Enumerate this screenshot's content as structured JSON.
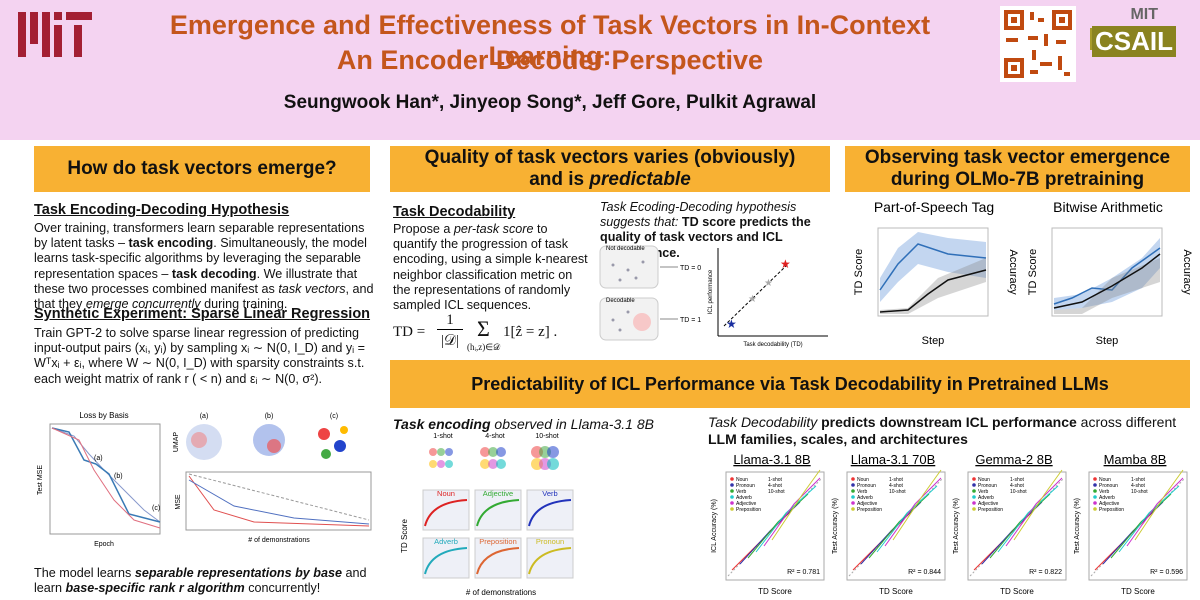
{
  "header": {
    "title": [
      "Emergence and Effectiveness of Task Vectors in In-Context Learning:",
      "An Encoder Decoder Perspective"
    ],
    "authors": "Seungwook Han*, Jinyeop Song*, Jeff Gore, Pulkit Agrawal",
    "lab_logo": [
      "MIT",
      "CSAIL"
    ]
  },
  "left": {
    "heading": "How do task vectors emerge?",
    "hypothesis": {
      "title": "Task Encoding-Decoding Hypothesis",
      "parts": [
        "Over training, transformers learn separable representations by latent tasks – ",
        "task encoding",
        ". Simultaneously, the model learns task-specific algorithms by leveraging the separable representation spaces – ",
        "task decoding",
        ". We illustrate that these two processes combined manifest as ",
        "task vectors",
        ", and that they ",
        "emerge concurrently",
        " during training."
      ]
    },
    "synthetic": {
      "title": "Synthetic Experiment: Sparse Linear Regression",
      "text": "Train GPT-2 to solve sparse linear regression of predicting input-output pairs (xᵢ, yᵢ) by sampling xᵢ ∼ N(0, I_D) and yᵢ = Wᵀxᵢ + εᵢ, where W ∼ N(0, I_D) with sparsity constraints s.t. each weight matrix of rank r ( < n) and εᵢ ∼ N(0, σ²)."
    },
    "figure": {
      "title": "Loss by Basis",
      "panels": [
        "(a)",
        "(b)",
        "(c)"
      ],
      "x_labels": [
        "Epoch",
        "# of demonstrations"
      ],
      "y_labels": [
        "Test MSE",
        "UMAP",
        "MSE"
      ]
    },
    "conclusion": [
      "The model learns ",
      "separable representations by base",
      " and learn ",
      "base-specific rank r algorithm",
      " concurrently!"
    ]
  },
  "middle": {
    "heading": [
      "Quality of task vectors varies (obviously)",
      "and is ",
      "predictable"
    ],
    "decodability": {
      "title": "Task Decodability",
      "parts": [
        "Propose a ",
        "per-task score",
        " to quantify the progression of task encoding, using a simple k-nearest neighbor classification metric on the representations of randomly sampled ICL sequences."
      ],
      "formula": [
        "TD =",
        "1",
        "|𝒟|",
        "Σ",
        "(hᵢ,z)∈𝒟",
        "1[ẑ = z] ."
      ]
    },
    "hypothesis_note": [
      "Task Ecoding-Decoding hypothesis suggests that:",
      "TD score predicts the quality of task vectors and ICL performance."
    ],
    "diagram": {
      "labels": [
        "Not decodable",
        "Decodable",
        "TD = 0",
        "TD = 1"
      ],
      "y_label": "ICL performance",
      "x_label": "Task decodability (TD)"
    }
  },
  "right": {
    "heading": [
      "Observing task vector emergence",
      "during OLMo-7B pretraining"
    ],
    "plots": [
      "Part-of-Speech Tag",
      "Bitwise Arithmetic"
    ],
    "y_label": "TD Score",
    "y2_label": "Accuracy",
    "x_label": "Step"
  },
  "bottom": {
    "heading": "Predictability of ICL Performance via Task Decodability in Pretrained LLMs",
    "encoding": {
      "title": [
        "Task encoding",
        " observed in Llama-3.1 8B"
      ],
      "shots": [
        "1-shot",
        "4-shot",
        "10-shot"
      ],
      "tasks": [
        "Noun",
        "Adjective",
        "Verb",
        "Adverb",
        "Preposition",
        "Pronoun"
      ],
      "y_label": "TD Score",
      "x_label": "# of demonstrations"
    },
    "prediction": {
      "text": [
        "Task Decodability ",
        "predicts downstream ICL performance",
        " across different ",
        "LLM families, scales, and architectures"
      ],
      "charts": [
        {
          "title": "Llama-3.1 8B",
          "r2": "R² = 0.781",
          "y_label": "ICL Accuracy (%)"
        },
        {
          "title": "Llama-3.1 70B",
          "r2": "R² = 0.844",
          "y_label": "Test Accuracy (%)"
        },
        {
          "title": "Gemma-2 8B",
          "r2": "R² = 0.822",
          "y_label": "Test Accuracy (%)"
        },
        {
          "title": "Mamba 8B",
          "r2": "R² = 0.596",
          "y_label": "Test Accuracy (%)"
        }
      ],
      "legend_tasks": [
        "Noun",
        "Pronoun",
        "Verb",
        "Adverb",
        "Adjective",
        "Preposition"
      ],
      "legend_shots": [
        "1-shot",
        "4-shot",
        "10-shot"
      ],
      "x_label": "TD Score"
    }
  }
}
